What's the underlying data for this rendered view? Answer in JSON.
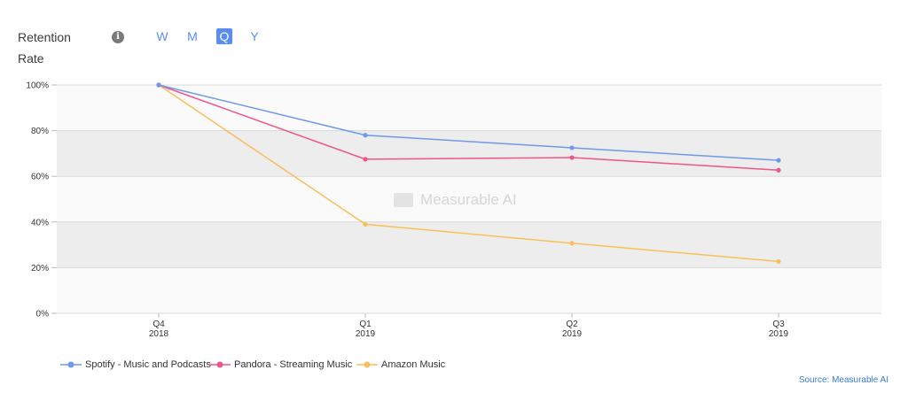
{
  "header": {
    "title_line1": "Retention",
    "title_line2": "Rate",
    "periods": [
      "W",
      "M",
      "Q",
      "Y"
    ],
    "active_period": "Q"
  },
  "watermark": "Measurable AI",
  "source": "Source: Measurable AI",
  "chart_data": {
    "type": "line",
    "categories": [
      [
        "Q4",
        "2018"
      ],
      [
        "Q1",
        "2019"
      ],
      [
        "Q2",
        "2019"
      ],
      [
        "Q3",
        "2019"
      ]
    ],
    "y_ticks": [
      "0%",
      "20%",
      "40%",
      "60%",
      "80%",
      "100%"
    ],
    "ylim": [
      0,
      100
    ],
    "y_unit": "%",
    "legend_position": "bottom-left",
    "grid": "alternating horizontal bands",
    "series": [
      {
        "name": "Spotify - Music and Podcasts",
        "color": "#6f9ae8",
        "values": [
          100,
          78,
          72.5,
          67
        ]
      },
      {
        "name": "Pandora - Streaming Music",
        "color": "#f0558a",
        "values": [
          100,
          67.5,
          68.2,
          62.7
        ]
      },
      {
        "name": "Amazon Music",
        "color": "#fbbf57",
        "values": [
          100,
          39,
          30.7,
          22.7
        ]
      }
    ]
  }
}
